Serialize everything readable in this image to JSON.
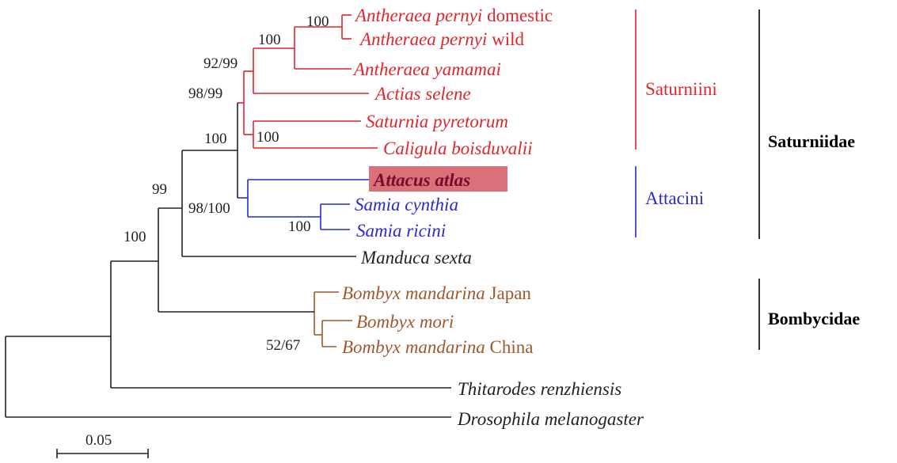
{
  "colors": {
    "saturniini": "#e0262b",
    "attacini": "#2a2ad0",
    "bombycidae": "#a0582a",
    "outgroup": "#222222",
    "highlight_bg": "#d9707a",
    "highlight_text": "#7a0a2a"
  },
  "taxa": [
    {
      "id": "ap-domestic",
      "italic": "Antheraea pernyi",
      "plain": " domestic",
      "color": "saturniini"
    },
    {
      "id": "ap-wild",
      "italic": "Antheraea pernyi",
      "plain": " wild",
      "color": "saturniini"
    },
    {
      "id": "a-yamamai",
      "italic": "Antheraea yamamai",
      "plain": "",
      "color": "saturniini"
    },
    {
      "id": "a-selene",
      "italic": "Actias selene",
      "plain": "",
      "color": "saturniini"
    },
    {
      "id": "s-pyretorum",
      "italic": "Saturnia pyretorum",
      "plain": "",
      "color": "saturniini"
    },
    {
      "id": "c-boisduvalii",
      "italic": "Caligula boisduvalii",
      "plain": "",
      "color": "saturniini"
    },
    {
      "id": "a-atlas",
      "italic": "Attacus atlas",
      "plain": "",
      "color": "highlight_text",
      "highlighted": true
    },
    {
      "id": "s-cynthia",
      "italic": "Samia cynthia",
      "plain": "",
      "color": "attacini"
    },
    {
      "id": "s-ricini",
      "italic": "Samia ricini",
      "plain": "",
      "color": "attacini"
    },
    {
      "id": "m-sexta",
      "italic": "Manduca sexta",
      "plain": "",
      "color": "outgroup"
    },
    {
      "id": "bm-japan",
      "italic": "Bombyx mandarina",
      "plain": " Japan",
      "color": "bombycidae"
    },
    {
      "id": "b-mori",
      "italic": "Bombyx mori",
      "plain": "",
      "color": "bombycidae"
    },
    {
      "id": "bm-china",
      "italic": "Bombyx mandarina",
      "plain": " China",
      "color": "bombycidae"
    },
    {
      "id": "t-renzhiensis",
      "italic": "Thitarodes renzhiensis",
      "plain": "",
      "color": "outgroup"
    },
    {
      "id": "d-melanogaster",
      "italic": "Drosophila melanogaster",
      "plain": "",
      "color": "outgroup"
    }
  ],
  "support_values": [
    "100",
    "100",
    "92/99",
    "98/99",
    "100",
    "100",
    "98/100",
    "100",
    "99",
    "100",
    "52/67"
  ],
  "clade_labels": [
    "Saturniini",
    "Attacini"
  ],
  "family_labels": [
    "Saturniidae",
    "Bombycidae"
  ],
  "scale_bar": {
    "label": "0.05"
  }
}
